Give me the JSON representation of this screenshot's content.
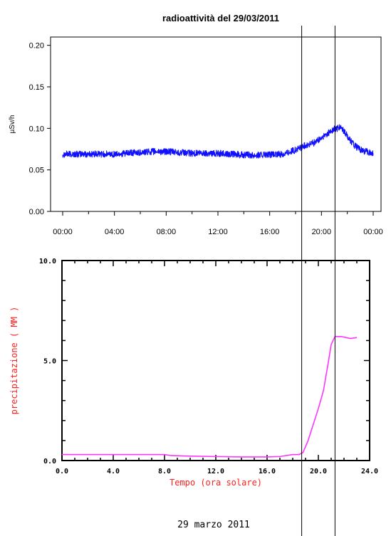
{
  "colors": {
    "radiation_line": "#1010ff",
    "rain_line": "#ff33ff",
    "rain_text": "#ff2020",
    "axis": "#000000"
  },
  "chart_data": [
    {
      "type": "line",
      "title": "radioattività del 29/03/2011",
      "xlabel": "",
      "ylabel": "µSv/h",
      "xlim": [
        0,
        24
      ],
      "ylim": [
        0,
        0.21
      ],
      "x_ticks": [
        0,
        4,
        8,
        12,
        16,
        20,
        24
      ],
      "x_tick_labels": [
        "00:00",
        "04:00",
        "08:00",
        "12:00",
        "16:00",
        "20:00",
        "00:00"
      ],
      "y_ticks": [
        0,
        0.05,
        0.1,
        0.15,
        0.2
      ],
      "y_tick_labels": [
        "0.00",
        "0.05",
        "0.10",
        "0.15",
        "0.20"
      ],
      "grid": false,
      "series": [
        {
          "x": [
            0,
            1,
            2,
            3,
            4,
            5,
            6,
            7,
            8,
            9,
            10,
            11,
            12,
            13,
            14,
            15,
            16,
            17,
            18,
            18.7,
            19.5,
            20,
            20.5,
            21,
            21.5,
            22,
            22.5,
            23,
            24
          ],
          "y": [
            0.069,
            0.069,
            0.069,
            0.069,
            0.069,
            0.07,
            0.071,
            0.072,
            0.072,
            0.071,
            0.07,
            0.07,
            0.07,
            0.069,
            0.068,
            0.068,
            0.068,
            0.069,
            0.074,
            0.079,
            0.083,
            0.088,
            0.094,
            0.099,
            0.101,
            0.091,
            0.08,
            0.074,
            0.07
          ]
        }
      ]
    },
    {
      "type": "line",
      "title": "",
      "xlabel": "Tempo (ora solare)",
      "ylabel": "precipitazione ( MM )",
      "xlim": [
        0,
        24
      ],
      "ylim": [
        0,
        10
      ],
      "x_ticks": [
        0,
        4,
        8,
        12,
        16,
        20,
        24
      ],
      "x_tick_labels": [
        "0.0",
        "4.0",
        "8.0",
        "12.0",
        "16.0",
        "20.0",
        "24.0"
      ],
      "y_ticks": [
        0,
        5,
        10
      ],
      "y_tick_labels": [
        "0.0",
        "5.0",
        "10.0"
      ],
      "grid": false,
      "footer": "29 marzo 2011",
      "series": [
        {
          "x": [
            0,
            4,
            8,
            8.5,
            10,
            12,
            14,
            16,
            17,
            18,
            18.5,
            18.8,
            19.2,
            19.6,
            20.0,
            20.4,
            20.8,
            21.0,
            21.3,
            21.8,
            22.5,
            23
          ],
          "y": [
            0.3,
            0.3,
            0.3,
            0.25,
            0.22,
            0.2,
            0.18,
            0.18,
            0.2,
            0.3,
            0.3,
            0.4,
            1.0,
            1.8,
            2.6,
            3.5,
            5.0,
            5.8,
            6.2,
            6.2,
            6.1,
            6.15
          ]
        }
      ]
    }
  ],
  "markers": {
    "x": [
      18.7,
      21.3
    ]
  }
}
